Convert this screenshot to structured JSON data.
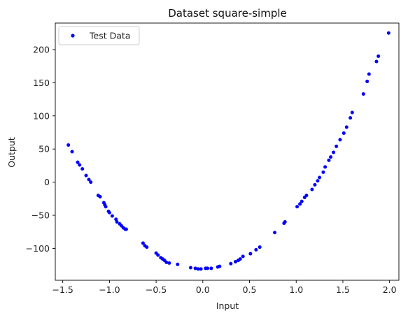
{
  "chart_data": {
    "type": "scatter",
    "title": "Dataset square-simple",
    "xlabel": "Input",
    "ylabel": "Output",
    "xlim": [
      -1.58,
      2.1
    ],
    "ylim": [
      -148,
      240
    ],
    "xticks": [
      -1.5,
      -1.0,
      -0.5,
      0.0,
      0.5,
      1.0,
      1.5,
      2.0
    ],
    "xtick_labels": [
      "−1.5",
      "−1.0",
      "−0.5",
      "0.0",
      "0.5",
      "1.0",
      "1.5",
      "2.0"
    ],
    "yticks": [
      -100,
      -50,
      0,
      50,
      100,
      150,
      200
    ],
    "ytick_labels": [
      "−100",
      "−50",
      "0",
      "50",
      "100",
      "150",
      "200"
    ],
    "grid": false,
    "legend_position": "top-left",
    "series": [
      {
        "name": "Test Data",
        "color": "#0000ff",
        "x": [
          -1.44,
          -1.4,
          -1.34,
          -1.32,
          -1.29,
          -1.25,
          -1.22,
          -1.2,
          -1.12,
          -1.1,
          -1.06,
          -1.05,
          -1.04,
          -1.01,
          -1.0,
          -0.97,
          -0.93,
          -0.92,
          -0.89,
          -0.87,
          -0.85,
          -0.83,
          -0.82,
          -0.64,
          -0.62,
          -0.6,
          -0.5,
          -0.48,
          -0.45,
          -0.43,
          -0.41,
          -0.39,
          -0.36,
          -0.27,
          -0.13,
          -0.08,
          -0.05,
          -0.02,
          0.03,
          0.05,
          0.09,
          0.16,
          0.18,
          0.3,
          0.35,
          0.38,
          0.4,
          0.43,
          0.51,
          0.57,
          0.61,
          0.77,
          0.87,
          0.88,
          1.01,
          1.04,
          1.06,
          1.09,
          1.11,
          1.17,
          1.2,
          1.23,
          1.25,
          1.29,
          1.31,
          1.35,
          1.37,
          1.4,
          1.43,
          1.47,
          1.51,
          1.54,
          1.58,
          1.6,
          1.72,
          1.76,
          1.78,
          1.86,
          1.88,
          1.99
        ],
        "y": [
          56,
          46,
          30,
          26,
          20,
          10,
          4,
          0,
          -20,
          -22,
          -31,
          -34,
          -37,
          -44,
          -46,
          -51,
          -56,
          -60,
          -63,
          -66,
          -69,
          -71,
          -71,
          -92,
          -96,
          -98,
          -107,
          -110,
          -114,
          -116,
          -118,
          -121,
          -122,
          -124,
          -129,
          -130,
          -131,
          -131,
          -130,
          -130,
          -130,
          -128,
          -127,
          -123,
          -120,
          -118,
          -116,
          -112,
          -108,
          -102,
          -98,
          -76,
          -62,
          -60,
          -37,
          -33,
          -29,
          -23,
          -20,
          -11,
          -4,
          2,
          7,
          15,
          23,
          33,
          38,
          45,
          54,
          64,
          74,
          83,
          97,
          105,
          133,
          152,
          163,
          182,
          190,
          225
        ]
      }
    ]
  }
}
